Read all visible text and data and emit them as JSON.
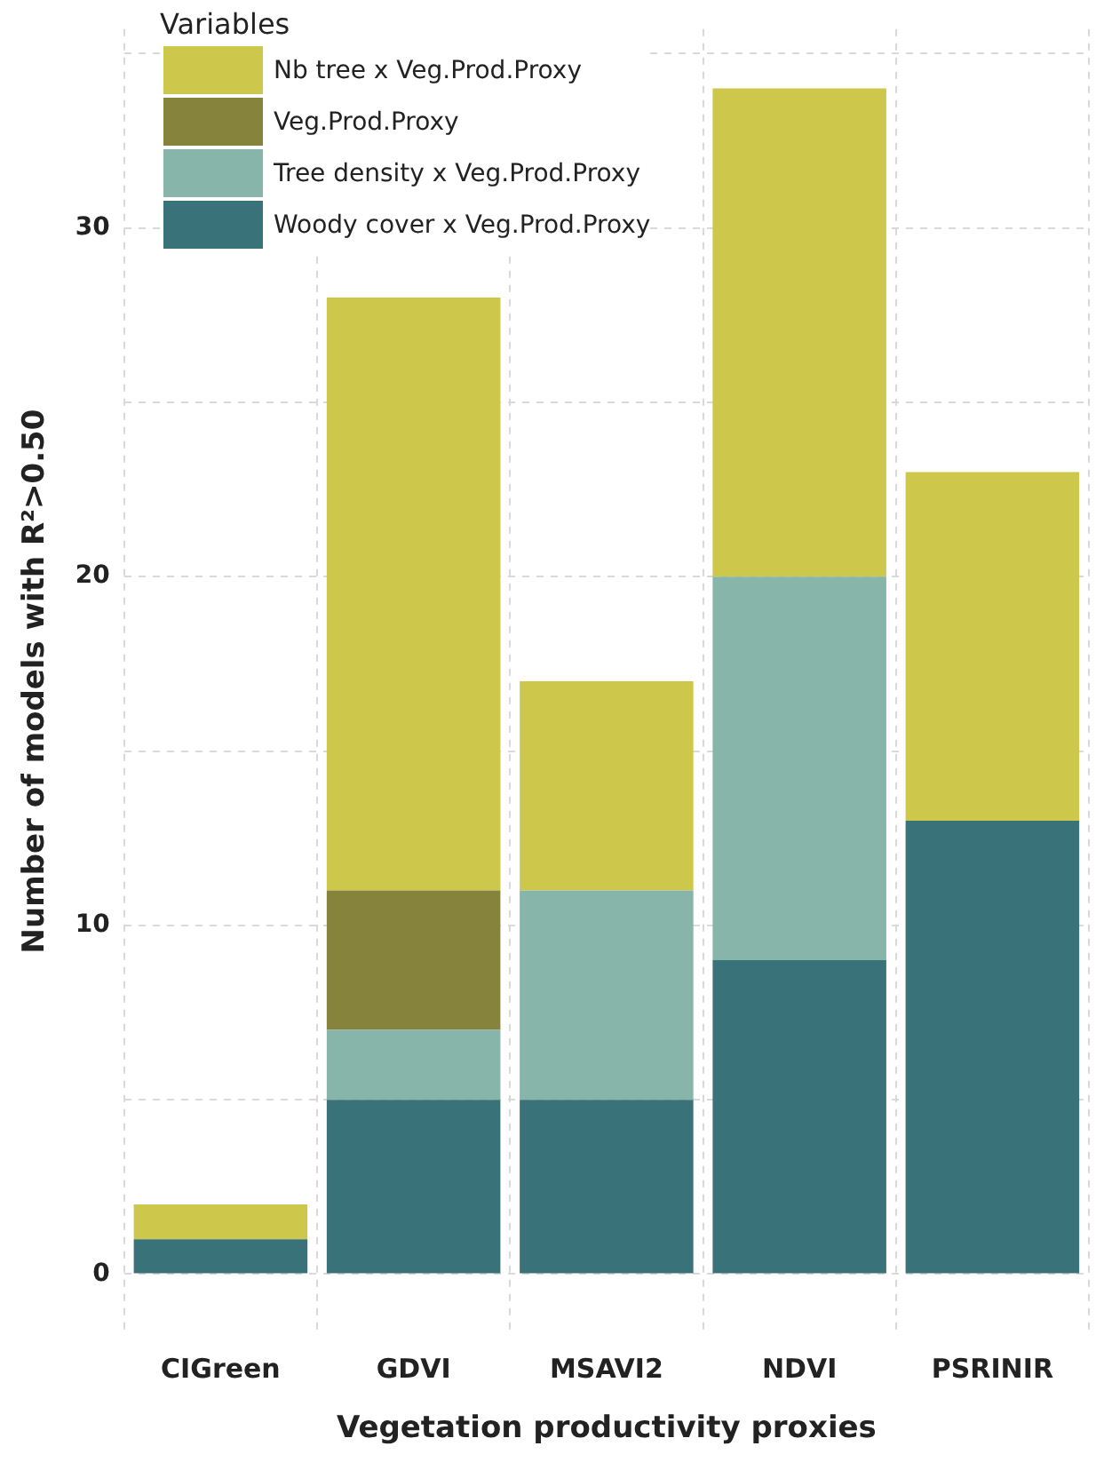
{
  "chart_data": {
    "type": "bar",
    "stacked": true,
    "xlabel": "Vegetation productivity proxies",
    "ylabel": "Number of models with R²>0.50",
    "legend_title": "Variables",
    "legend": "top left",
    "grid": true,
    "categories": [
      "CIGreen",
      "GDVI",
      "MSAVI2",
      "NDVI",
      "PSRINIR"
    ],
    "ylim": [
      -1.7,
      35.7
    ],
    "yticks": [
      0,
      {
        "value": 5,
        "label": null
      },
      10,
      {
        "value": 15,
        "label": null
      },
      20,
      {
        "value": 25,
        "label": null
      },
      30,
      {
        "value": 35,
        "label": null
      }
    ],
    "series": [
      {
        "name": "Woody cover x Veg.Prod.Proxy",
        "color": "#3a7279",
        "values": [
          1,
          5,
          5,
          9,
          13
        ]
      },
      {
        "name": "Tree density x Veg.Prod.Proxy",
        "color": "#88b5aa",
        "values": [
          0,
          2,
          6,
          11,
          0
        ]
      },
      {
        "name": "Veg.Prod.Proxy",
        "color": "#86843c",
        "values": [
          0,
          4,
          0,
          0,
          0
        ]
      },
      {
        "name": "Nb tree x Veg.Prod.Proxy",
        "color": "#cdc84b",
        "values": [
          1,
          17,
          6,
          14,
          10
        ]
      }
    ]
  }
}
